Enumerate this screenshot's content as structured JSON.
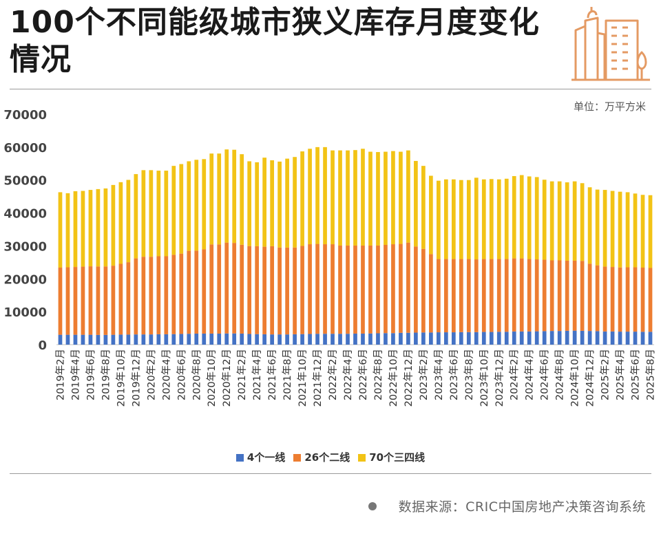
{
  "header": {
    "title": "100个不同能级城市狭义库存月度变化情况",
    "logo_icon": "building-logo-icon",
    "accent_color": "#e49a63"
  },
  "unit_label": "单位：万平方米",
  "source_label": "数据来源：CRIC中国房地产决策咨询系统",
  "chart_data": {
    "type": "bar",
    "stacked": true,
    "title": "100个不同能级城市狭义库存月度变化情况",
    "xlabel": "",
    "ylabel": "",
    "unit": "万平方米",
    "ylim": [
      0,
      70000
    ],
    "yticks": [
      0,
      10000,
      20000,
      30000,
      40000,
      50000,
      60000,
      70000
    ],
    "grid": false,
    "legend_position": "bottom",
    "categories": [
      "2019年2月",
      "2019年3月",
      "2019年4月",
      "2019年5月",
      "2019年6月",
      "2019年7月",
      "2019年8月",
      "2019年9月",
      "2019年10月",
      "2019年11月",
      "2019年12月",
      "2020年1月",
      "2020年2月",
      "2020年3月",
      "2020年4月",
      "2020年5月",
      "2020年6月",
      "2020年7月",
      "2020年8月",
      "2020年9月",
      "2020年10月",
      "2020年11月",
      "2020年12月",
      "2021年1月",
      "2021年2月",
      "2021年3月",
      "2021年4月",
      "2021年5月",
      "2021年6月",
      "2021年7月",
      "2021年8月",
      "2021年9月",
      "2021年10月",
      "2021年11月",
      "2021年12月",
      "2022年1月",
      "2022年2月",
      "2022年3月",
      "2022年4月",
      "2022年5月",
      "2022年6月",
      "2022年7月",
      "2022年8月",
      "2022年9月",
      "2022年10月",
      "2022年11月",
      "2022年12月",
      "2023年1月",
      "2023年2月",
      "2023年3月",
      "2023年4月",
      "2023年5月",
      "2023年6月",
      "2023年7月",
      "2023年8月",
      "2023年9月",
      "2023年10月",
      "2023年11月",
      "2023年12月",
      "2024年1月",
      "2024年2月",
      "2024年3月",
      "2024年4月",
      "2024年5月",
      "2024年6月",
      "2024年7月",
      "2024年8月",
      "2024年9月",
      "2024年10月",
      "2024年11月",
      "2024年12月",
      "2025年1月",
      "2025年2月",
      "2025年3月",
      "2025年4月",
      "2025年5月",
      "2025年6月",
      "2025年7月",
      "2025年8月"
    ],
    "tick_labels": [
      "2019年2月",
      "",
      "2019年4月",
      "",
      "2019年6月",
      "",
      "2019年8月",
      "",
      "2019年10月",
      "",
      "2019年12月",
      "",
      "2020年2月",
      "",
      "2020年4月",
      "",
      "2020年6月",
      "",
      "2020年8月",
      "",
      "2020年10月",
      "",
      "2020年12月",
      "",
      "2021年2月",
      "",
      "2021年4月",
      "",
      "2021年6月",
      "",
      "2021年8月",
      "",
      "2021年10月",
      "",
      "2021年12月",
      "",
      "2022年2月",
      "",
      "2022年4月",
      "",
      "2022年6月",
      "",
      "2022年8月",
      "",
      "2022年10月",
      "",
      "2022年12月",
      "",
      "2023年2月",
      "",
      "2023年4月",
      "",
      "2023年6月",
      "",
      "2023年8月",
      "",
      "2023年10月",
      "",
      "2023年12月",
      "",
      "2024年2月",
      "",
      "2024年4月",
      "",
      "2024年6月",
      "",
      "2024年8月",
      "",
      "2024年10月",
      "",
      "2024年12月",
      "",
      "2025年2月",
      "",
      "2025年4月",
      "",
      "2025年6月",
      "",
      "2025年8月"
    ],
    "series": [
      {
        "name": "4个一线",
        "color": "#4472c4",
        "values": [
          3000,
          3000,
          3000,
          3000,
          3000,
          2950,
          2950,
          3000,
          3050,
          3050,
          3100,
          3100,
          3100,
          3150,
          3150,
          3200,
          3250,
          3300,
          3350,
          3350,
          3350,
          3350,
          3400,
          3400,
          3350,
          3250,
          3200,
          3150,
          3100,
          3100,
          3100,
          3150,
          3200,
          3250,
          3300,
          3300,
          3300,
          3300,
          3300,
          3350,
          3350,
          3400,
          3450,
          3500,
          3500,
          3600,
          3600,
          3650,
          3700,
          3700,
          3750,
          3750,
          3750,
          3800,
          3800,
          3800,
          3850,
          3850,
          3900,
          3900,
          4000,
          4000,
          4000,
          4050,
          4100,
          4150,
          4150,
          4200,
          4250,
          4200,
          4150,
          4100,
          4000,
          4000,
          3950,
          3950,
          3950,
          3900,
          3900
        ]
      },
      {
        "name": "26个二线",
        "color": "#ed7d31",
        "values": [
          20400,
          20500,
          20600,
          20700,
          20800,
          20800,
          20800,
          21000,
          21500,
          22000,
          23100,
          23600,
          23600,
          23700,
          23700,
          24100,
          24400,
          25200,
          25200,
          25600,
          27100,
          27100,
          27600,
          27500,
          27000,
          26700,
          26700,
          26600,
          26800,
          26400,
          26400,
          26350,
          26800,
          27250,
          27300,
          27200,
          27200,
          26800,
          26800,
          26750,
          26750,
          26700,
          26650,
          26800,
          27000,
          27000,
          27400,
          26150,
          25400,
          23800,
          22250,
          22250,
          22250,
          22200,
          22200,
          22100,
          22150,
          22150,
          22100,
          22100,
          22200,
          22200,
          22000,
          21850,
          21700,
          21450,
          21450,
          21300,
          21250,
          21250,
          20450,
          20000,
          19700,
          19600,
          19500,
          19550,
          19550,
          19500,
          19400
        ]
      },
      {
        "name": "70个三四线",
        "color": "#f2c316",
        "values": [
          22900,
          22500,
          23000,
          23000,
          23200,
          23500,
          23700,
          24500,
          24800,
          25000,
          25600,
          26300,
          26300,
          26000,
          26000,
          27000,
          27200,
          27200,
          27600,
          27400,
          27600,
          27600,
          28300,
          28300,
          27500,
          25750,
          25500,
          27050,
          26100,
          26100,
          27000,
          27500,
          28700,
          29000,
          29400,
          29500,
          28500,
          28900,
          28900,
          29000,
          29400,
          28500,
          28400,
          28300,
          28300,
          28000,
          28000,
          26000,
          25200,
          23800,
          23800,
          24200,
          24200,
          24000,
          24000,
          24800,
          24200,
          24300,
          24200,
          24400,
          25000,
          25300,
          25100,
          25000,
          24300,
          24000,
          24000,
          23800,
          24100,
          23600,
          23200,
          23000,
          23300,
          23100,
          23000,
          22800,
          22400,
          22100,
          22100
        ]
      }
    ]
  }
}
